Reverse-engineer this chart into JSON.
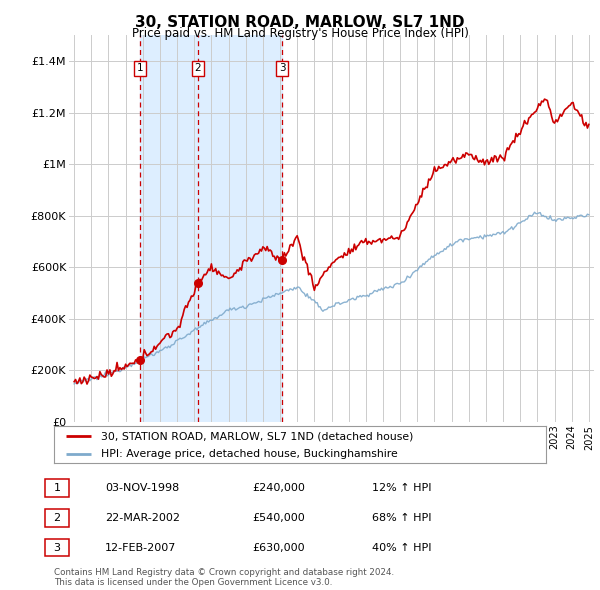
{
  "title": "30, STATION ROAD, MARLOW, SL7 1ND",
  "subtitle": "Price paid vs. HM Land Registry's House Price Index (HPI)",
  "ylabel_ticks": [
    "£0",
    "£200K",
    "£400K",
    "£600K",
    "£800K",
    "£1M",
    "£1.2M",
    "£1.4M"
  ],
  "ylim": [
    0,
    1500000
  ],
  "yticks": [
    0,
    200000,
    400000,
    600000,
    800000,
    1000000,
    1200000,
    1400000
  ],
  "xmin": 1994.7,
  "xmax": 2025.3,
  "sale_dates": [
    1998.84,
    2002.22,
    2007.12
  ],
  "sale_prices": [
    240000,
    540000,
    630000
  ],
  "sale_labels": [
    "1",
    "2",
    "3"
  ],
  "legend_entries": [
    "30, STATION ROAD, MARLOW, SL7 1ND (detached house)",
    "HPI: Average price, detached house, Buckinghamshire"
  ],
  "table_data": [
    [
      "1",
      "03-NOV-1998",
      "£240,000",
      "12% ↑ HPI"
    ],
    [
      "2",
      "22-MAR-2002",
      "£540,000",
      "68% ↑ HPI"
    ],
    [
      "3",
      "12-FEB-2007",
      "£630,000",
      "40% ↑ HPI"
    ]
  ],
  "footnote": "Contains HM Land Registry data © Crown copyright and database right 2024.\nThis data is licensed under the Open Government Licence v3.0.",
  "red_color": "#cc0000",
  "blue_color": "#7faacc",
  "shade_color": "#ddeeff",
  "grid_color": "#cccccc",
  "background_color": "#ffffff"
}
